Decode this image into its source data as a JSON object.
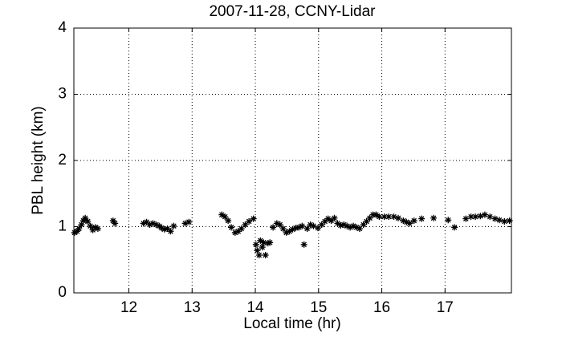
{
  "chart_data": {
    "type": "scatter",
    "title": "2007-11-28, CCNY-Lidar",
    "x_label": "Local time (hr)",
    "y_label": "PBL height (km)",
    "xlim": [
      11.13,
      18.05
    ],
    "xticks": [
      12,
      13,
      14,
      15,
      16,
      17
    ],
    "ylim": [
      0,
      4
    ],
    "yticks": [
      0,
      1,
      2,
      3,
      4
    ],
    "grid": true,
    "color": "#000000",
    "marker": "*",
    "x": [
      11.14,
      11.18,
      11.21,
      11.25,
      11.28,
      11.31,
      11.35,
      11.39,
      11.43,
      11.47,
      11.51,
      11.75,
      11.78,
      12.23,
      12.28,
      12.33,
      12.38,
      12.43,
      12.48,
      12.52,
      12.56,
      12.61,
      12.66,
      12.71,
      12.89,
      12.95,
      13.47,
      13.52,
      13.57,
      13.62,
      13.68,
      13.73,
      13.78,
      13.84,
      13.9,
      13.97,
      14.01,
      14.03,
      14.06,
      14.08,
      14.11,
      14.13,
      14.16,
      14.2,
      14.23,
      14.28,
      14.34,
      14.39,
      14.44,
      14.49,
      14.54,
      14.59,
      14.64,
      14.69,
      14.74,
      14.77,
      14.82,
      14.87,
      14.92,
      14.99,
      15.05,
      15.1,
      15.15,
      15.2,
      15.25,
      15.3,
      15.35,
      15.4,
      15.45,
      15.5,
      15.55,
      15.6,
      15.65,
      15.71,
      15.76,
      15.81,
      15.86,
      15.91,
      15.96,
      16.04,
      16.11,
      16.19,
      16.26,
      16.34,
      16.39,
      16.44,
      16.51,
      16.63,
      16.82,
      17.05,
      17.15,
      17.33,
      17.41,
      17.48,
      17.56,
      17.63,
      17.71,
      17.79,
      17.86,
      17.94,
      18.02
    ],
    "values": [
      0.91,
      0.93,
      0.97,
      1.03,
      1.09,
      1.13,
      1.08,
      1.01,
      0.95,
      0.99,
      0.97,
      1.09,
      1.05,
      1.05,
      1.07,
      1.03,
      1.05,
      1.03,
      1.01,
      0.98,
      0.96,
      0.97,
      0.93,
      1.01,
      1.05,
      1.07,
      1.18,
      1.15,
      1.09,
      0.99,
      0.91,
      0.93,
      0.97,
      1.03,
      1.08,
      1.12,
      0.73,
      0.64,
      0.57,
      0.79,
      0.69,
      0.76,
      0.57,
      0.75,
      0.76,
      0.99,
      1.05,
      1.03,
      0.97,
      0.91,
      0.93,
      0.96,
      0.98,
      0.99,
      1.01,
      0.73,
      0.97,
      1.03,
      1.01,
      0.98,
      1.03,
      1.08,
      1.12,
      1.09,
      1.13,
      1.05,
      1.02,
      1.03,
      1.01,
      0.99,
      1.01,
      0.99,
      0.97,
      1.03,
      1.08,
      1.13,
      1.18,
      1.18,
      1.15,
      1.15,
      1.15,
      1.15,
      1.13,
      1.09,
      1.07,
      1.05,
      1.09,
      1.12,
      1.13,
      1.1,
      0.99,
      1.12,
      1.15,
      1.15,
      1.16,
      1.18,
      1.15,
      1.12,
      1.1,
      1.08,
      1.09
    ]
  }
}
